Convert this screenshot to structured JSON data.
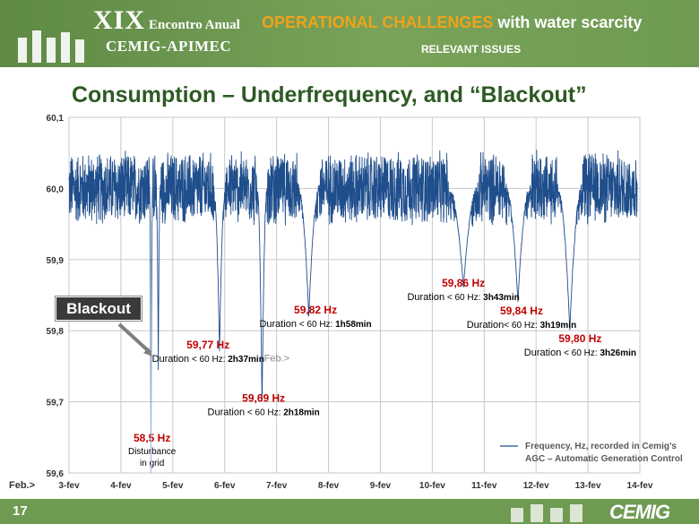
{
  "header": {
    "roman": "XIX",
    "event": "Encontro Anual",
    "org": "CEMIG-APIMEC",
    "title_highlight": "OPERATIONAL CHALLENGES",
    "title_rest": " with water scarcity",
    "subtitle": "RELEVANT ISSUES"
  },
  "page_title": "Consumption – Underfrequency, and “Blackout”",
  "footer": {
    "page_number": "17",
    "logo_text": "CEMIG"
  },
  "colors": {
    "series": "#1f4e8c",
    "event_red": "#c00000",
    "grid": "#c8c8c8",
    "header_green": "#6f9a52",
    "title_green": "#2d5a24",
    "accent_orange": "#f0a21a"
  },
  "chart_data": {
    "type": "line",
    "x_axis_prefix": "Feb.>",
    "categories": [
      "3-fev",
      "4-fev",
      "5-fev",
      "6-fev",
      "7-fev",
      "8-fev",
      "9-fev",
      "10-fev",
      "11-fev",
      "12-fev",
      "13-fev",
      "14-fev"
    ],
    "y_ticks": [
      "60,1",
      "60,0",
      "59,9",
      "59,8",
      "59,7",
      "59,6"
    ],
    "ylim": [
      59.6,
      60.1
    ],
    "xlim": [
      3,
      14
    ],
    "grid": true,
    "legend_position": "bottom-right",
    "series": [
      {
        "name": "Frequency, Hz, recorded in Cemig’s AGC – Automatic Generation Control",
        "baseline": 60.0,
        "noise_amplitude": 0.055
      }
    ],
    "dips": [
      {
        "day": 4.58,
        "min": 59.6,
        "width": 0.03
      },
      {
        "day": 4.72,
        "min": 59.74,
        "width": 0.04
      },
      {
        "day": 5.9,
        "min": 59.77,
        "width": 0.12
      },
      {
        "day": 6.72,
        "min": 59.69,
        "width": 0.1
      },
      {
        "day": 7.62,
        "min": 59.82,
        "width": 0.22
      },
      {
        "day": 10.6,
        "min": 59.86,
        "width": 0.3
      },
      {
        "day": 11.65,
        "min": 59.84,
        "width": 0.25
      },
      {
        "day": 12.65,
        "min": 59.8,
        "width": 0.25
      }
    ],
    "annotations": [
      {
        "label": "58,5 Hz",
        "detail_line1": "Disturbance",
        "detail_line2": "in grid",
        "day": 4.6,
        "y": 59.644,
        "kind": "disturbance"
      },
      {
        "label": "59,77 Hz",
        "detail_prefix": "Duration",
        "detail_mid": " < 60 Hz: ",
        "detail_value": "2h37min",
        "day": 5.68,
        "y": 59.775
      },
      {
        "label": "59,69 Hz",
        "detail_prefix": "Duration",
        "detail_mid": " < 60 Hz: ",
        "detail_value": "2h18min",
        "day": 6.75,
        "y": 59.7
      },
      {
        "label": "59,82 Hz",
        "detail_prefix": "Duration",
        "detail_mid": " < 60 Hz: ",
        "detail_value": "1h58min",
        "day": 7.75,
        "y": 59.824
      },
      {
        "label": "59,86 Hz",
        "detail_prefix": "Duration",
        "detail_mid": " < 60 Hz: ",
        "detail_value": "3h43min",
        "day": 10.6,
        "y": 59.862
      },
      {
        "label": "59,84 Hz",
        "detail_prefix": "Duration",
        "detail_mid": "< 60 Hz: ",
        "detail_value": "3h19min",
        "day": 11.72,
        "y": 59.823
      },
      {
        "label": "59,80 Hz",
        "detail_prefix": "Duration",
        "detail_mid": " < 60 Hz: ",
        "detail_value": "3h26min",
        "day": 12.85,
        "y": 59.784
      }
    ],
    "callouts": {
      "blackout": "Blackout",
      "feb_marker": "Feb.>"
    }
  }
}
